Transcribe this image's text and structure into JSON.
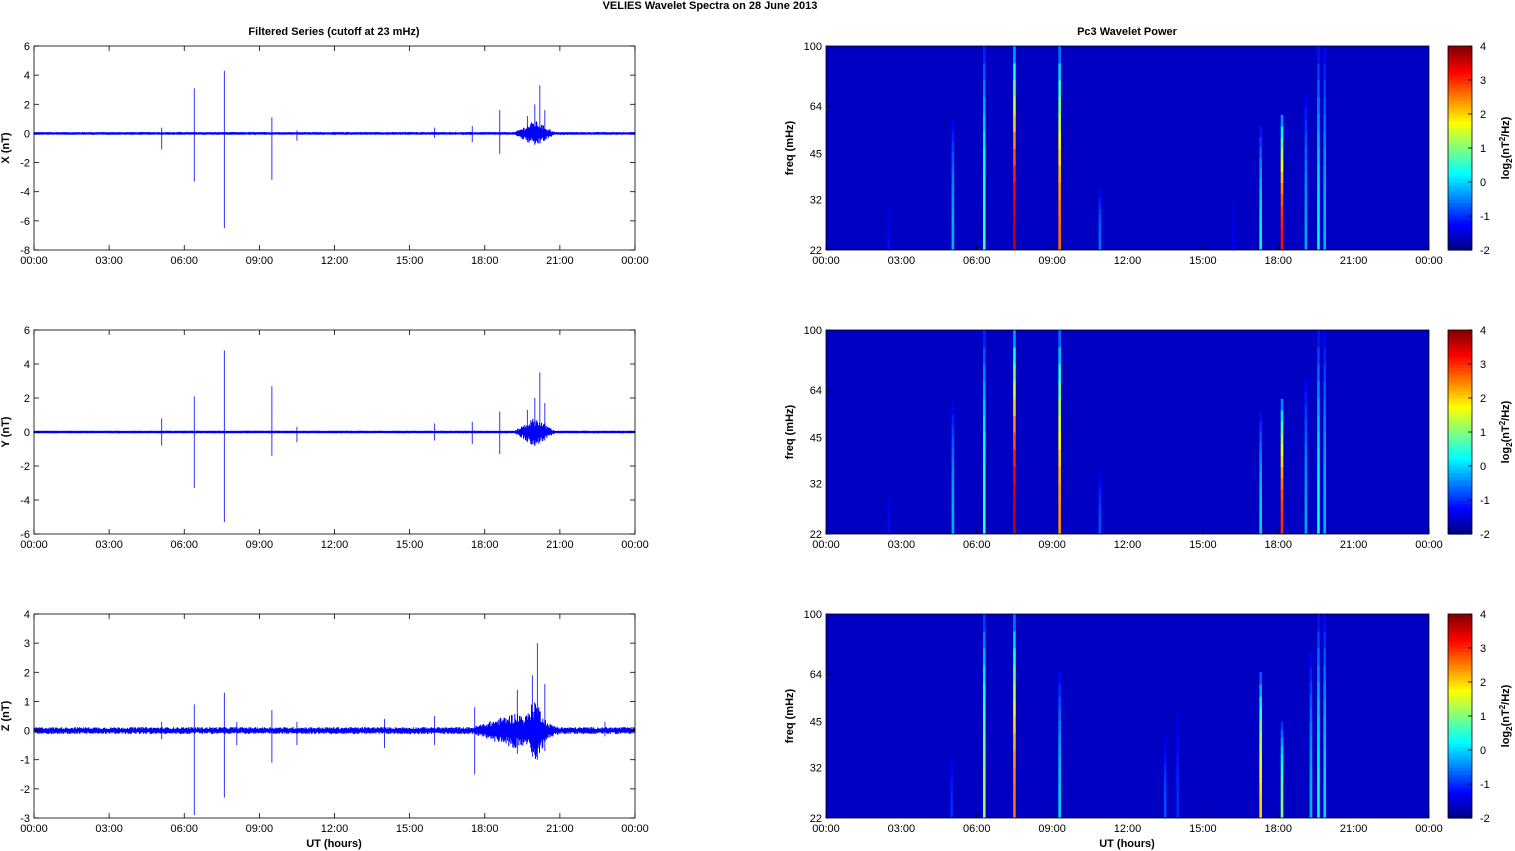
{
  "figure": {
    "title": "VELIES Wavelet Spectra on 28 June      2013",
    "left_title": "Filtered Series (cutoff at 23 mHz)",
    "right_title": "Pc3 Wavelet Power",
    "xlabel": "UT (hours)",
    "time_ticks": [
      "00:00",
      "03:00",
      "06:00",
      "09:00",
      "12:00",
      "15:00",
      "18:00",
      "21:00",
      "00:00"
    ],
    "colors": {
      "trace": "#0000ff",
      "background": "#00008f"
    }
  },
  "chart_data": [
    {
      "type": "line",
      "name": "X",
      "ylabel": "X (nT)",
      "xlabel": "",
      "xlim": [
        0,
        24
      ],
      "ylim": [
        -8,
        6
      ],
      "yticks": [
        6,
        4,
        2,
        0,
        -2,
        -4,
        -6,
        -8
      ],
      "baseline_noise_amplitude": 0.1,
      "spikes": [
        {
          "x": 5.1,
          "y": [
            -1.1,
            0.4
          ]
        },
        {
          "x": 6.4,
          "y": [
            -3.3,
            3.1
          ]
        },
        {
          "x": 7.6,
          "y": [
            -6.5,
            4.3
          ]
        },
        {
          "x": 9.5,
          "y": [
            -3.2,
            1.1
          ]
        },
        {
          "x": 10.5,
          "y": [
            -0.5,
            0.2
          ]
        },
        {
          "x": 16.0,
          "y": [
            -0.3,
            0.4
          ]
        },
        {
          "x": 17.5,
          "y": [
            -0.6,
            0.5
          ]
        },
        {
          "x": 18.6,
          "y": [
            -1.4,
            1.6
          ]
        },
        {
          "x": 19.7,
          "y": [
            -0.6,
            1.2
          ]
        },
        {
          "x": 20.0,
          "y": [
            -0.7,
            2.0
          ]
        },
        {
          "x": 20.2,
          "y": [
            -0.7,
            3.3
          ]
        },
        {
          "x": 20.4,
          "y": [
            -0.5,
            1.6
          ]
        }
      ],
      "bursts": [
        {
          "from": 19.2,
          "to": 20.8,
          "amplitude": 0.8
        }
      ]
    },
    {
      "type": "line",
      "name": "Y",
      "ylabel": "Y (nT)",
      "xlabel": "",
      "xlim": [
        0,
        24
      ],
      "ylim": [
        -6,
        6
      ],
      "yticks": [
        6,
        4,
        2,
        0,
        -2,
        -4,
        -6
      ],
      "baseline_noise_amplitude": 0.08,
      "spikes": [
        {
          "x": 5.1,
          "y": [
            -0.8,
            0.8
          ]
        },
        {
          "x": 6.4,
          "y": [
            -3.3,
            2.1
          ]
        },
        {
          "x": 7.6,
          "y": [
            -5.3,
            4.8
          ]
        },
        {
          "x": 9.5,
          "y": [
            -1.4,
            2.7
          ]
        },
        {
          "x": 10.5,
          "y": [
            -0.6,
            0.3
          ]
        },
        {
          "x": 16.0,
          "y": [
            -0.5,
            0.5
          ]
        },
        {
          "x": 17.5,
          "y": [
            -0.7,
            0.6
          ]
        },
        {
          "x": 18.6,
          "y": [
            -1.3,
            1.2
          ]
        },
        {
          "x": 19.7,
          "y": [
            -0.6,
            1.3
          ]
        },
        {
          "x": 20.0,
          "y": [
            -0.8,
            2.0
          ]
        },
        {
          "x": 20.2,
          "y": [
            -0.6,
            3.5
          ]
        },
        {
          "x": 20.4,
          "y": [
            -0.5,
            1.7
          ]
        }
      ],
      "bursts": [
        {
          "from": 19.2,
          "to": 20.8,
          "amplitude": 0.8
        }
      ]
    },
    {
      "type": "line",
      "name": "Z",
      "ylabel": "Z (nT)",
      "xlabel": "UT (hours)",
      "xlim": [
        0,
        24
      ],
      "ylim": [
        -3,
        4
      ],
      "yticks": [
        4,
        3,
        2,
        1,
        0,
        -1,
        -2,
        -3
      ],
      "baseline_noise_amplitude": 0.12,
      "spikes": [
        {
          "x": 5.1,
          "y": [
            -0.3,
            0.3
          ]
        },
        {
          "x": 6.4,
          "y": [
            -2.9,
            0.9
          ]
        },
        {
          "x": 7.6,
          "y": [
            -2.3,
            1.3
          ]
        },
        {
          "x": 8.1,
          "y": [
            -0.5,
            0.3
          ]
        },
        {
          "x": 9.5,
          "y": [
            -1.1,
            0.7
          ]
        },
        {
          "x": 10.5,
          "y": [
            -0.5,
            0.3
          ]
        },
        {
          "x": 14.0,
          "y": [
            -0.6,
            0.4
          ]
        },
        {
          "x": 16.0,
          "y": [
            -0.5,
            0.5
          ]
        },
        {
          "x": 17.6,
          "y": [
            -1.5,
            0.8
          ]
        },
        {
          "x": 19.3,
          "y": [
            -0.8,
            1.4
          ]
        },
        {
          "x": 19.9,
          "y": [
            -0.9,
            1.9
          ]
        },
        {
          "x": 20.1,
          "y": [
            -1.0,
            3.0
          ]
        },
        {
          "x": 20.4,
          "y": [
            -0.7,
            1.6
          ]
        },
        {
          "x": 22.8,
          "y": [
            -0.2,
            0.3
          ]
        }
      ],
      "bursts": [
        {
          "from": 17.5,
          "to": 21.0,
          "amplitude": 0.5
        },
        {
          "from": 19.4,
          "to": 20.6,
          "amplitude": 1.0
        }
      ]
    },
    {
      "type": "heatmap",
      "name": "X wavelet power",
      "ylabel": "freq (mHz)",
      "xlabel": "",
      "xlim": [
        0,
        24
      ],
      "ylim": [
        22,
        100
      ],
      "yscale": "log",
      "yticks": [
        100,
        64,
        45,
        32,
        22
      ],
      "colorbar": {
        "label": "log₂(nT²/Hz)",
        "label_prefix": "log",
        "label_sub": "2",
        "label_mid": "(nT",
        "label_sup": "2",
        "label_suffix": "/Hz)",
        "range": [
          -2,
          4
        ],
        "ticks": [
          4,
          3,
          2,
          1,
          0,
          -1,
          -2
        ]
      },
      "background_level": -1.6,
      "streaks": [
        {
          "x": 2.5,
          "fmax": 30,
          "level": -1.2
        },
        {
          "x": 5.05,
          "fmax": 58,
          "level": -0.2
        },
        {
          "x": 6.3,
          "fmax": 100,
          "level": 0.6
        },
        {
          "x": 7.5,
          "fmax": 100,
          "level": 3.6
        },
        {
          "x": 9.3,
          "fmax": 100,
          "level": 2.6
        },
        {
          "x": 10.9,
          "fmax": 35,
          "level": -0.6
        },
        {
          "x": 16.2,
          "fmax": 32,
          "level": -1.3
        },
        {
          "x": 17.3,
          "fmax": 55,
          "level": 0.2
        },
        {
          "x": 18.15,
          "fmax": 60,
          "level": 3.2
        },
        {
          "x": 19.1,
          "fmax": 70,
          "level": -0.3
        },
        {
          "x": 19.6,
          "fmax": 100,
          "level": 0.2
        },
        {
          "x": 19.85,
          "fmax": 100,
          "level": -0.2
        }
      ]
    },
    {
      "type": "heatmap",
      "name": "Y wavelet power",
      "ylabel": "freq (mHz)",
      "xlabel": "",
      "xlim": [
        0,
        24
      ],
      "ylim": [
        22,
        100
      ],
      "yscale": "log",
      "yticks": [
        100,
        64,
        45,
        32,
        22
      ],
      "colorbar": {
        "label": "log₂(nT²/Hz)",
        "label_prefix": "log",
        "label_sub": "2",
        "label_mid": "(nT",
        "label_sup": "2",
        "label_suffix": "/Hz)",
        "range": [
          -2,
          4
        ],
        "ticks": [
          4,
          3,
          2,
          1,
          0,
          -1,
          -2
        ]
      },
      "background_level": -1.6,
      "streaks": [
        {
          "x": 2.5,
          "fmax": 30,
          "level": -1.2
        },
        {
          "x": 5.05,
          "fmax": 58,
          "level": -0.2
        },
        {
          "x": 6.3,
          "fmax": 100,
          "level": 0.6
        },
        {
          "x": 7.5,
          "fmax": 100,
          "level": 3.6
        },
        {
          "x": 9.3,
          "fmax": 100,
          "level": 2.4
        },
        {
          "x": 10.9,
          "fmax": 35,
          "level": -0.8
        },
        {
          "x": 17.3,
          "fmax": 55,
          "level": 0.0
        },
        {
          "x": 18.15,
          "fmax": 60,
          "level": 3.0
        },
        {
          "x": 19.1,
          "fmax": 70,
          "level": -0.3
        },
        {
          "x": 19.6,
          "fmax": 100,
          "level": 0.3
        },
        {
          "x": 19.85,
          "fmax": 100,
          "level": -0.2
        }
      ]
    },
    {
      "type": "heatmap",
      "name": "Z wavelet power",
      "ylabel": "freq (mHz)",
      "xlabel": "UT (hours)",
      "xlim": [
        0,
        24
      ],
      "ylim": [
        22,
        100
      ],
      "yscale": "log",
      "yticks": [
        100,
        64,
        45,
        32,
        22
      ],
      "colorbar": {
        "label": "log₂(nT²/Hz)",
        "label_prefix": "log",
        "label_sub": "2",
        "label_mid": "(nT",
        "label_sup": "2",
        "label_suffix": "/Hz)",
        "range": [
          -2,
          4
        ],
        "ticks": [
          4,
          3,
          2,
          1,
          0,
          -1,
          -2
        ]
      },
      "background_level": -1.6,
      "streaks": [
        {
          "x": 5.0,
          "fmax": 35,
          "level": -1.0
        },
        {
          "x": 6.3,
          "fmax": 100,
          "level": 1.2
        },
        {
          "x": 7.5,
          "fmax": 100,
          "level": 2.6
        },
        {
          "x": 9.3,
          "fmax": 65,
          "level": 0.0
        },
        {
          "x": 13.5,
          "fmax": 40,
          "level": -0.8
        },
        {
          "x": 14.0,
          "fmax": 48,
          "level": -1.0
        },
        {
          "x": 17.3,
          "fmax": 65,
          "level": 2.0
        },
        {
          "x": 18.15,
          "fmax": 45,
          "level": 1.0
        },
        {
          "x": 19.3,
          "fmax": 75,
          "level": -0.2
        },
        {
          "x": 19.6,
          "fmax": 100,
          "level": 0.3
        },
        {
          "x": 19.85,
          "fmax": 100,
          "level": 0.0
        }
      ]
    }
  ]
}
